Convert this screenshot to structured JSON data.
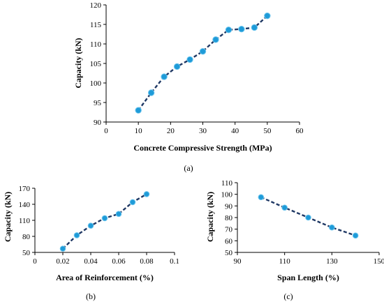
{
  "colors": {
    "line": "#1f3864",
    "marker": "#1f9bd8"
  },
  "chart_data": [
    {
      "type": "line",
      "panel_label": "(a)",
      "xlabel": "Concrete Compressive Strength (MPa)",
      "ylabel": "Capacity (kN)",
      "xlim": [
        0,
        60
      ],
      "ylim": [
        90,
        120
      ],
      "x_ticks": [
        "0",
        "10",
        "20",
        "30",
        "40",
        "50",
        "60"
      ],
      "y_ticks": [
        "90",
        "95",
        "100",
        "105",
        "110",
        "115",
        "120"
      ],
      "grid": false,
      "series": [
        {
          "x": [
            10,
            14,
            18,
            22,
            26,
            30,
            34,
            38,
            42,
            46,
            50
          ],
          "values": [
            93.0,
            97.5,
            101.6,
            104.2,
            106.0,
            108.1,
            111.1,
            113.6,
            113.8,
            114.2,
            117.2
          ]
        }
      ]
    },
    {
      "type": "line",
      "panel_label": "(b)",
      "xlabel": "Area of Reinforcement (%)",
      "ylabel": "Capacity (kN)",
      "xlim": [
        0,
        0.1
      ],
      "ylim": [
        50,
        170
      ],
      "x_ticks": [
        "0",
        "0.02",
        "0.04",
        "0.06",
        "0.08",
        "0.1"
      ],
      "y_ticks": [
        "50",
        "80",
        "110",
        "140",
        "170"
      ],
      "grid": false,
      "series": [
        {
          "x": [
            0.02,
            0.03,
            0.04,
            0.05,
            0.06,
            0.07,
            0.08
          ],
          "values": [
            57,
            82,
            100,
            114,
            122,
            144,
            159
          ]
        }
      ]
    },
    {
      "type": "line",
      "panel_label": "(c)",
      "xlabel": "Span Length (%)",
      "ylabel": "Capacity (kN)",
      "xlim": [
        90,
        150
      ],
      "ylim": [
        50,
        110
      ],
      "x_ticks": [
        "90",
        "110",
        "130",
        "150"
      ],
      "y_ticks": [
        "50",
        "60",
        "70",
        "80",
        "90",
        "100",
        "110"
      ],
      "grid": false,
      "series": [
        {
          "x": [
            100,
            110,
            120,
            130,
            140
          ],
          "values": [
            97.5,
            88.5,
            80,
            71.5,
            64.5
          ]
        }
      ]
    }
  ]
}
